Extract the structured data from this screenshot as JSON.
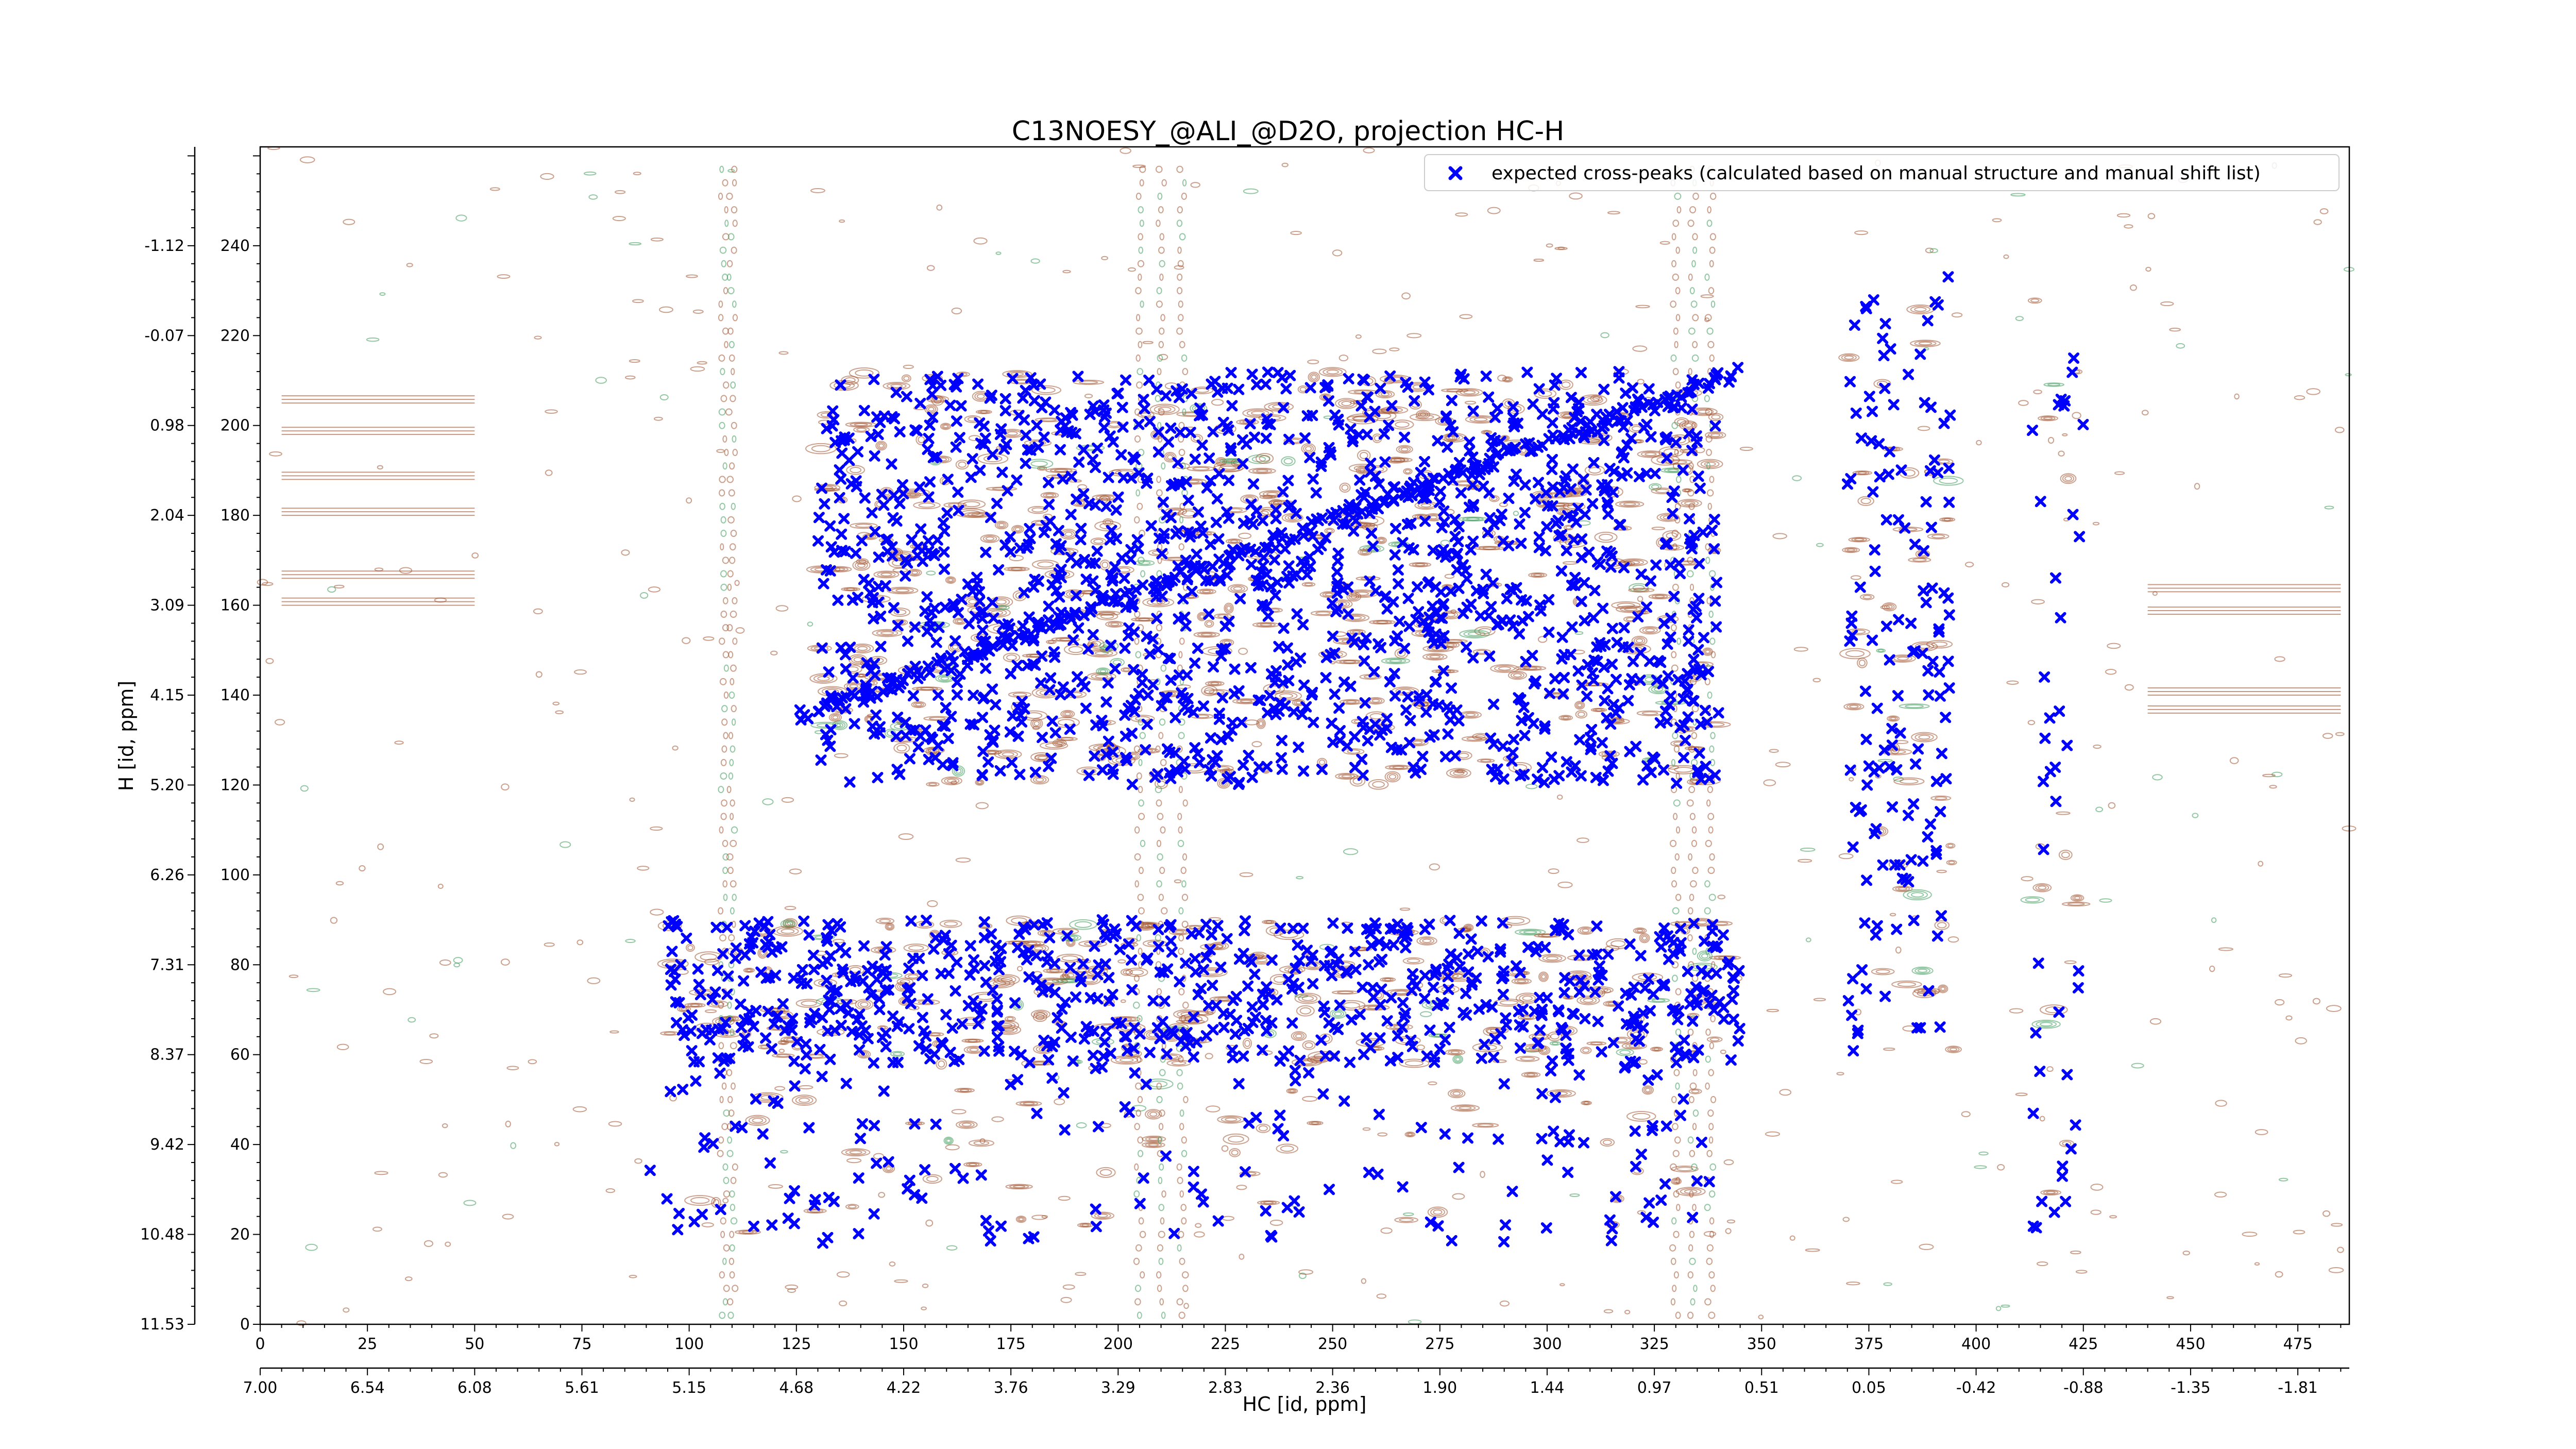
{
  "chart_data": {
    "type": "scatter",
    "title": "C13NOESY_@ALI_@D2O, projection HC-H",
    "xlabel": "HC [id, ppm]",
    "ylabel": "H [id, ppm]",
    "x_index_range": [
      0,
      487
    ],
    "y_index_range": [
      0,
      262
    ],
    "x_ticks": [
      0,
      25,
      50,
      75,
      100,
      125,
      150,
      175,
      200,
      225,
      250,
      275,
      300,
      325,
      350,
      375,
      400,
      425,
      450,
      475
    ],
    "x_ppm_ticks": [
      "7.00",
      "6.54",
      "6.08",
      "5.61",
      "5.15",
      "4.68",
      "4.22",
      "3.76",
      "3.29",
      "2.83",
      "2.36",
      "1.90",
      "1.44",
      "0.97",
      "0.51",
      "0.05",
      "-0.42",
      "-0.88",
      "-1.35",
      "-1.81"
    ],
    "y_ticks": [
      0,
      20,
      40,
      60,
      80,
      100,
      120,
      140,
      160,
      180,
      200,
      220,
      240
    ],
    "y_ppm_ticks": [
      "11.53",
      "10.48",
      "9.42",
      "8.37",
      "7.31",
      "6.26",
      "5.20",
      "4.15",
      "3.09",
      "2.04",
      "0.98",
      "-0.07",
      "-1.12"
    ],
    "legend": {
      "placement": "top-right",
      "entries": [
        {
          "label": "expected cross-peaks (calculated based on manual structure and manual shift list)",
          "marker": "x",
          "color": "#0000ff"
        }
      ]
    },
    "colors": {
      "positive_contour": "#a0522d",
      "negative_contour": "#3c9a5a",
      "cross_peak": "#0000ff"
    },
    "grid": false,
    "peak_regions": [
      {
        "x_range": [
          130,
          340
        ],
        "y_range": [
          120,
          212
        ],
        "approx_count": 1400
      },
      {
        "x_range": [
          95,
          345
        ],
        "y_range": [
          58,
          90
        ],
        "approx_count": 700
      },
      {
        "x_range": [
          90,
          340
        ],
        "y_range": [
          18,
          58
        ],
        "approx_count": 160
      },
      {
        "x_range": [
          370,
          395
        ],
        "y_range": [
          60,
          235
        ],
        "approx_count": 140
      },
      {
        "x_range": [
          413,
          425
        ],
        "y_range": [
          20,
          230
        ],
        "approx_count": 40
      }
    ],
    "diagonal": {
      "x_start": 125,
      "y_start": 135,
      "x_end": 345,
      "y_end": 212
    }
  }
}
